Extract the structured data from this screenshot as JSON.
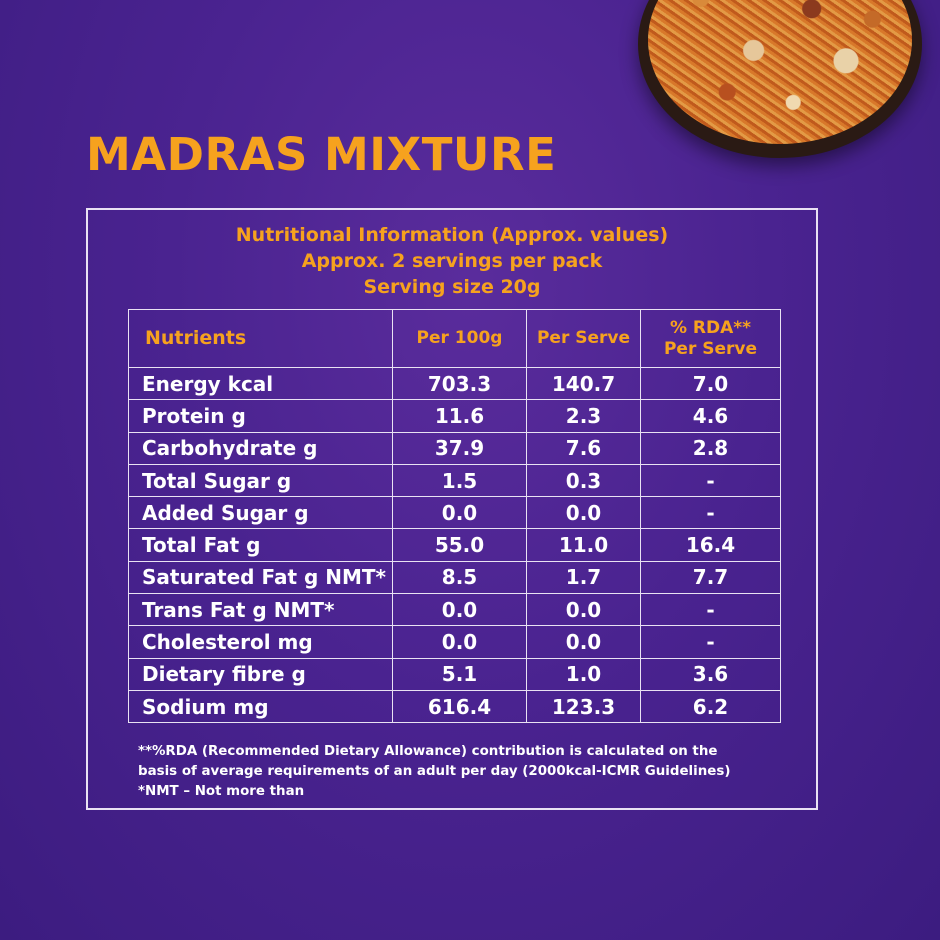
{
  "product_title": "MADRAS MIXTURE",
  "panel": {
    "header_lines": [
      "Nutritional Information (Approx. values)",
      "Approx. 2 servings per pack",
      "Serving size  20g"
    ],
    "columns": [
      "Nutrients",
      "Per 100g",
      "Per Serve",
      "% RDA** Per Serve"
    ],
    "rows": [
      {
        "nutrient": "Energy kcal",
        "per_100g": "703.3",
        "per_serve": "140.7",
        "rda": "7.0"
      },
      {
        "nutrient": "Protein g",
        "per_100g": "11.6",
        "per_serve": "2.3",
        "rda": "4.6"
      },
      {
        "nutrient": "Carbohydrate g",
        "per_100g": "37.9",
        "per_serve": "7.6",
        "rda": "2.8"
      },
      {
        "nutrient": "Total Sugar g",
        "per_100g": "1.5",
        "per_serve": "0.3",
        "rda": "-"
      },
      {
        "nutrient": "Added Sugar g",
        "per_100g": "0.0",
        "per_serve": "0.0",
        "rda": "-"
      },
      {
        "nutrient": "Total Fat g",
        "per_100g": "55.0",
        "per_serve": "11.0",
        "rda": "16.4"
      },
      {
        "nutrient": "Saturated Fat g  NMT*",
        "per_100g": "8.5",
        "per_serve": "1.7",
        "rda": "7.7"
      },
      {
        "nutrient": "Trans Fat g NMT*",
        "per_100g": "0.0",
        "per_serve": "0.0",
        "rda": "-"
      },
      {
        "nutrient": "Cholesterol mg",
        "per_100g": "0.0",
        "per_serve": "0.0",
        "rda": "-"
      },
      {
        "nutrient": "Dietary fibre g",
        "per_100g": "5.1",
        "per_serve": "1.0",
        "rda": "3.6"
      },
      {
        "nutrient": "Sodium mg",
        "per_100g": "616.4",
        "per_serve": "123.3",
        "rda": "6.2"
      }
    ],
    "footnotes": [
      "**%RDA (Recommended Dietary Allowance) contribution is calculated on the",
      "basis of average requirements of an adult per day (2000kcal-ICMR Guidelines)",
      "*NMT – Not more than"
    ]
  },
  "colors": {
    "background": "#4a2390",
    "accent": "#f6a21e",
    "text": "#ffffff",
    "border": "#e9e2f3"
  }
}
